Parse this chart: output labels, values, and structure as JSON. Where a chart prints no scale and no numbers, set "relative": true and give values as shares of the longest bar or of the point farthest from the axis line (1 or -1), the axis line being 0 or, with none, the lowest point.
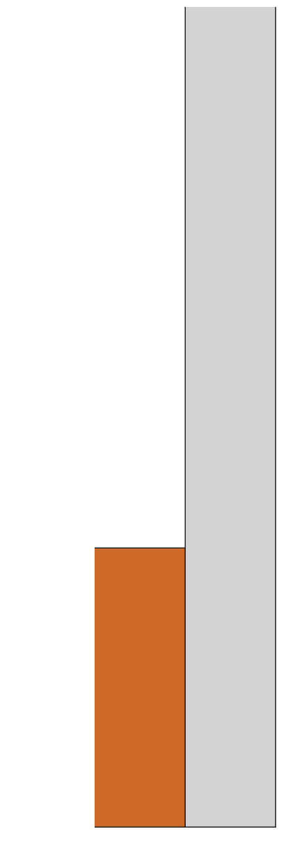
{
  "chart_data": {
    "type": "bar",
    "relative": true,
    "categories": [
      null,
      null
    ],
    "values": [
      0.34,
      1
    ],
    "colors": [
      "#cd6a2a",
      "#d3d3d3"
    ]
  }
}
